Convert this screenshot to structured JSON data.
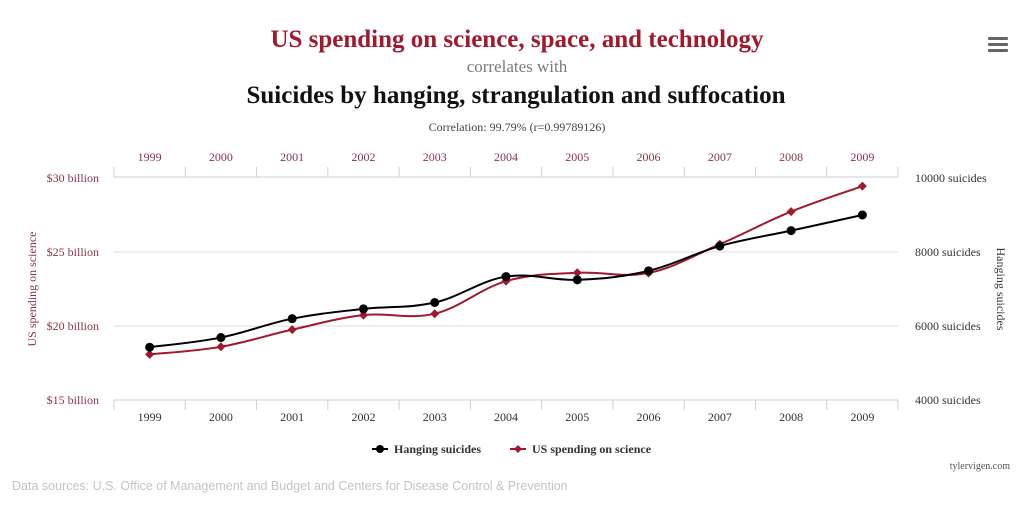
{
  "header": {
    "title": "US spending on science, space, and technology",
    "subtitle": "correlates with",
    "title2": "Suicides by hanging, strangulation and suffocation",
    "correlation": "Correlation: 99.79% (r=0.99789126)",
    "menu_icon": "hamburger-menu-icon"
  },
  "footer": {
    "credit": "tylervigen.com",
    "sources": "Data sources: U.S. Office of Management and Budget and Centers for Disease Control & Prevention"
  },
  "colors": {
    "spending": "#a0192f",
    "suicides": "#000000",
    "axis_label_left": "#8b3344",
    "grid": "#d8dde6"
  },
  "chart_data": {
    "type": "line",
    "title": "US spending on science, space, and technology correlates with Suicides by hanging, strangulation and suffocation",
    "categories": [
      "1999",
      "2000",
      "2001",
      "2002",
      "2003",
      "2004",
      "2005",
      "2006",
      "2007",
      "2008",
      "2009"
    ],
    "series": [
      {
        "name": "Hanging suicides",
        "axis": "right",
        "marker": "circle",
        "values": [
          5427,
          5688,
          6198,
          6462,
          6635,
          7336,
          7248,
          7491,
          8161,
          8578,
          9000
        ]
      },
      {
        "name": "US spending on science",
        "axis": "left",
        "marker": "diamond",
        "unit": "billion USD",
        "values": [
          18.079,
          18.594,
          19.753,
          20.734,
          20.831,
          23.029,
          23.597,
          23.584,
          25.525,
          27.731,
          29.449
        ]
      }
    ],
    "y_left": {
      "label": "US spending on science",
      "range": [
        15,
        30
      ],
      "ticks": [
        15,
        20,
        25,
        30
      ],
      "tick_labels": [
        "$15 billion",
        "$20 billion",
        "$25 billion",
        "$30 billion"
      ]
    },
    "y_right": {
      "label": "Hanging suicides",
      "range": [
        4000,
        10000
      ],
      "ticks": [
        4000,
        6000,
        8000,
        10000
      ],
      "tick_labels": [
        "4000 suicides",
        "6000 suicides",
        "8000 suicides",
        "10000 suicides"
      ]
    },
    "x_axes": [
      "top",
      "bottom"
    ],
    "grid": true,
    "legend": {
      "position": "bottom-center",
      "entries": [
        "Hanging suicides",
        "US spending on science"
      ]
    }
  }
}
